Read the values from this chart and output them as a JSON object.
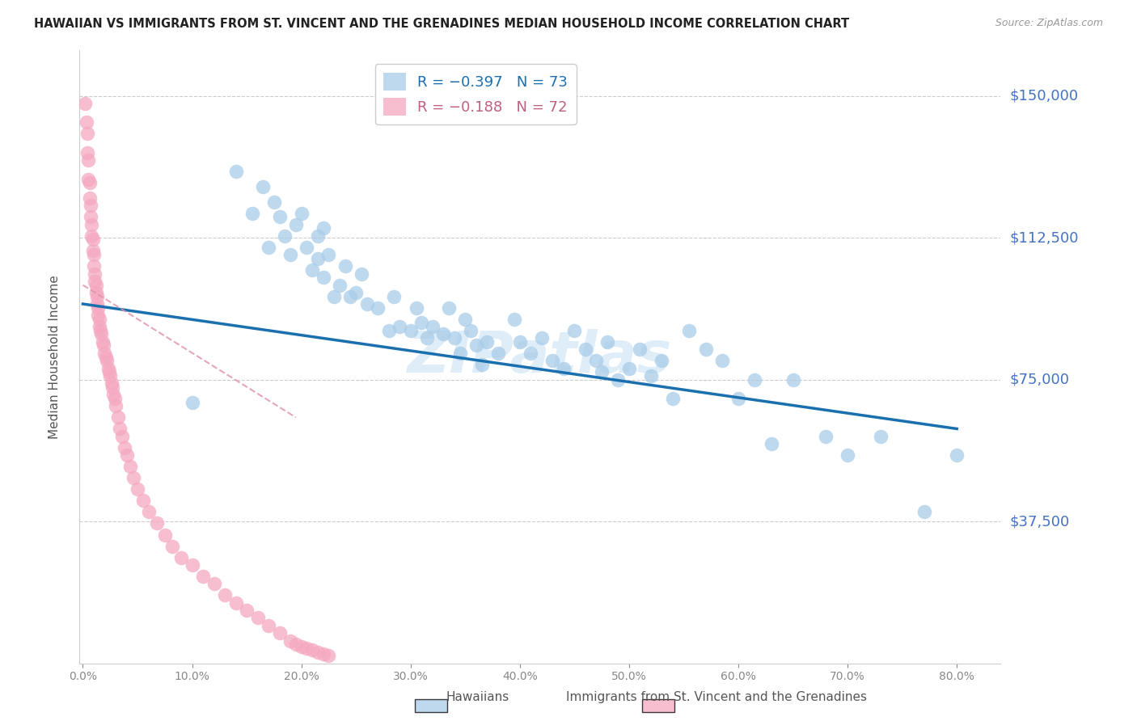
{
  "title": "HAWAIIAN VS IMMIGRANTS FROM ST. VINCENT AND THE GRENADINES MEDIAN HOUSEHOLD INCOME CORRELATION CHART",
  "source": "Source: ZipAtlas.com",
  "ylabel": "Median Household Income",
  "ytick_labels": [
    "$150,000",
    "$112,500",
    "$75,000",
    "$37,500"
  ],
  "ytick_values": [
    150000,
    112500,
    75000,
    37500
  ],
  "ymax": 162000,
  "ymin": 0,
  "xmin": -0.003,
  "xmax": 0.84,
  "blue_color": "#a8cce8",
  "pink_color": "#f4a8c0",
  "line_blue_color": "#1a6faf",
  "line_pink_color": "#e090a8",
  "watermark": "ZIPatlas",
  "hawaiians_x": [
    0.1,
    0.14,
    0.155,
    0.165,
    0.17,
    0.175,
    0.18,
    0.185,
    0.19,
    0.195,
    0.2,
    0.205,
    0.21,
    0.215,
    0.215,
    0.22,
    0.22,
    0.225,
    0.23,
    0.235,
    0.24,
    0.245,
    0.25,
    0.255,
    0.26,
    0.27,
    0.28,
    0.285,
    0.29,
    0.3,
    0.305,
    0.31,
    0.315,
    0.32,
    0.33,
    0.335,
    0.34,
    0.345,
    0.35,
    0.355,
    0.36,
    0.365,
    0.37,
    0.38,
    0.395,
    0.4,
    0.41,
    0.42,
    0.43,
    0.44,
    0.45,
    0.46,
    0.47,
    0.475,
    0.48,
    0.49,
    0.5,
    0.51,
    0.52,
    0.53,
    0.54,
    0.555,
    0.57,
    0.585,
    0.6,
    0.615,
    0.63,
    0.65,
    0.68,
    0.7,
    0.73,
    0.77,
    0.8
  ],
  "hawaiians_y": [
    69000,
    130000,
    119000,
    126000,
    110000,
    122000,
    118000,
    113000,
    108000,
    116000,
    119000,
    110000,
    104000,
    113000,
    107000,
    115000,
    102000,
    108000,
    97000,
    100000,
    105000,
    97000,
    98000,
    103000,
    95000,
    94000,
    88000,
    97000,
    89000,
    88000,
    94000,
    90000,
    86000,
    89000,
    87000,
    94000,
    86000,
    82000,
    91000,
    88000,
    84000,
    79000,
    85000,
    82000,
    91000,
    85000,
    82000,
    86000,
    80000,
    78000,
    88000,
    83000,
    80000,
    77000,
    85000,
    75000,
    78000,
    83000,
    76000,
    80000,
    70000,
    88000,
    83000,
    80000,
    70000,
    75000,
    58000,
    75000,
    60000,
    55000,
    60000,
    40000,
    55000
  ],
  "svg_x": [
    0.002,
    0.003,
    0.004,
    0.004,
    0.005,
    0.005,
    0.006,
    0.006,
    0.007,
    0.007,
    0.008,
    0.008,
    0.009,
    0.009,
    0.01,
    0.01,
    0.011,
    0.011,
    0.012,
    0.012,
    0.013,
    0.013,
    0.014,
    0.014,
    0.015,
    0.015,
    0.016,
    0.017,
    0.018,
    0.019,
    0.02,
    0.021,
    0.022,
    0.023,
    0.024,
    0.025,
    0.026,
    0.027,
    0.028,
    0.029,
    0.03,
    0.032,
    0.034,
    0.036,
    0.038,
    0.04,
    0.043,
    0.046,
    0.05,
    0.055,
    0.06,
    0.068,
    0.075,
    0.082,
    0.09,
    0.1,
    0.11,
    0.12,
    0.13,
    0.14,
    0.15,
    0.16,
    0.17,
    0.18,
    0.19,
    0.195,
    0.2,
    0.205,
    0.21,
    0.215,
    0.22,
    0.225
  ],
  "svg_y": [
    148000,
    143000,
    140000,
    135000,
    133000,
    128000,
    127000,
    123000,
    121000,
    118000,
    116000,
    113000,
    112000,
    109000,
    108000,
    105000,
    103000,
    101000,
    100000,
    98000,
    97000,
    95000,
    94000,
    92000,
    91000,
    89000,
    88000,
    87000,
    85000,
    84000,
    82000,
    81000,
    80000,
    78000,
    77000,
    76000,
    74000,
    73000,
    71000,
    70000,
    68000,
    65000,
    62000,
    60000,
    57000,
    55000,
    52000,
    49000,
    46000,
    43000,
    40000,
    37000,
    34000,
    31000,
    28000,
    26000,
    23000,
    21000,
    18000,
    16000,
    14000,
    12000,
    10000,
    8000,
    6000,
    5000,
    4500,
    4000,
    3500,
    3000,
    2500,
    2000
  ],
  "blue_line_x": [
    0.0,
    0.8
  ],
  "blue_line_y": [
    95000,
    62000
  ],
  "pink_line_x": [
    0.0,
    0.195
  ],
  "pink_line_y": [
    100000,
    65000
  ]
}
